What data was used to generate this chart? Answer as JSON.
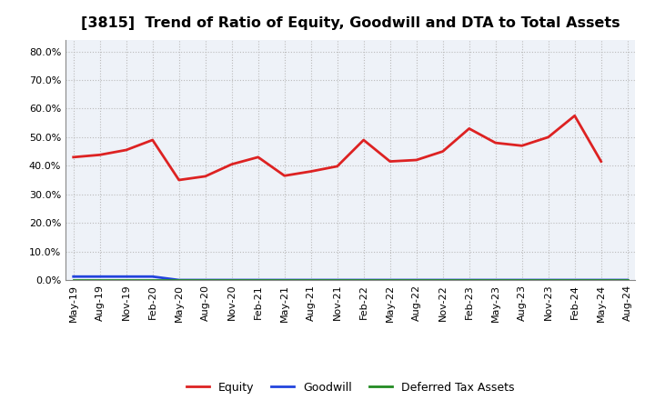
{
  "title": "[3815]  Trend of Ratio of Equity, Goodwill and DTA to Total Assets",
  "x_labels": [
    "May-19",
    "Aug-19",
    "Nov-19",
    "Feb-20",
    "May-20",
    "Aug-20",
    "Nov-20",
    "Feb-21",
    "May-21",
    "Aug-21",
    "Nov-21",
    "Feb-22",
    "May-22",
    "Aug-22",
    "Nov-22",
    "Feb-23",
    "May-23",
    "Aug-23",
    "Nov-23",
    "Feb-24",
    "May-24",
    "Aug-24"
  ],
  "equity": [
    0.43,
    0.438,
    0.455,
    0.49,
    0.35,
    0.363,
    0.405,
    0.43,
    0.365,
    0.38,
    0.398,
    0.49,
    0.415,
    0.42,
    0.45,
    0.53,
    0.48,
    0.47,
    0.5,
    0.575,
    0.415,
    null
  ],
  "goodwill": [
    0.012,
    0.012,
    0.012,
    0.012,
    0.0,
    0.0,
    0.0,
    0.0,
    0.0,
    0.0,
    0.0,
    0.0,
    0.0,
    0.0,
    0.0,
    0.0,
    0.0,
    0.0,
    0.0,
    0.0,
    0.0,
    0.0
  ],
  "dta": [
    0.001,
    0.001,
    0.001,
    0.001,
    0.001,
    0.001,
    0.001,
    0.001,
    0.001,
    0.001,
    0.001,
    0.001,
    0.001,
    0.001,
    0.001,
    0.001,
    0.001,
    0.001,
    0.001,
    0.001,
    0.001,
    0.001
  ],
  "equity_color": "#dd2222",
  "goodwill_color": "#2244dd",
  "dta_color": "#228B22",
  "ylim": [
    0.0,
    0.84
  ],
  "yticks": [
    0.0,
    0.1,
    0.2,
    0.3,
    0.4,
    0.5,
    0.6,
    0.7,
    0.8
  ],
  "background_color": "#ffffff",
  "plot_bg_color": "#eef2f8",
  "grid_color": "#bbbbbb",
  "title_fontsize": 11.5,
  "legend_fontsize": 9,
  "tick_fontsize": 8
}
